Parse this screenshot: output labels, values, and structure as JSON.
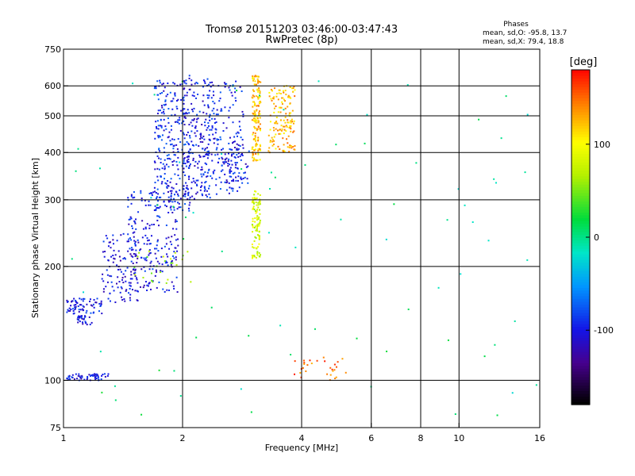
{
  "chart_data": {
    "type": "scatter",
    "title": "Tromsø 20151203 03:46:00-03:47:43",
    "subtitle": "RwPretec (8p)",
    "xlabel": "Frequency [MHz]",
    "ylabel": "Stationary phase Virtual Height [km]",
    "x_scale": "log",
    "y_scale": "log",
    "xlim": [
      1,
      16
    ],
    "ylim": [
      75,
      750
    ],
    "x_ticks": [
      1,
      2,
      4,
      6,
      8,
      10,
      16
    ],
    "x_tick_labels": [
      "1",
      "2",
      "4",
      "6",
      "8",
      "10",
      "16"
    ],
    "x_gridlines": [
      2,
      4,
      6,
      8,
      10
    ],
    "y_ticks": [
      75,
      100,
      200,
      300,
      400,
      500,
      600,
      750
    ],
    "y_tick_labels": [
      "75",
      "100",
      "200",
      "300",
      "400",
      "500",
      "600",
      "750"
    ],
    "y_gridlines": [
      100,
      200,
      300,
      400,
      500,
      600
    ],
    "grid": true,
    "stats": {
      "heading": "Phases",
      "o_line": "mean, sd,O: -95.8, 13.7",
      "x_line": "mean, sd,X:  79.4, 18.8"
    },
    "colorbar": {
      "label": "[deg]",
      "range": [
        -180,
        180
      ],
      "ticks": [
        -100,
        0,
        100
      ],
      "tick_labels": [
        "-100",
        "0",
        "100"
      ]
    },
    "clusters": [
      {
        "phase": -100,
        "n": 60,
        "x": [
          1.02,
          1.3
        ],
        "y": [
          100,
          104
        ]
      },
      {
        "phase": -100,
        "n": 70,
        "x": [
          1.02,
          1.25
        ],
        "y": [
          150,
          165
        ]
      },
      {
        "phase": -100,
        "n": 30,
        "x": [
          1.08,
          1.18
        ],
        "y": [
          140,
          148
        ]
      },
      {
        "phase": -105,
        "n": 120,
        "x": [
          1.25,
          1.55
        ],
        "y": [
          160,
          250
        ]
      },
      {
        "phase": -100,
        "n": 200,
        "x": [
          1.45,
          1.95
        ],
        "y": [
          170,
          320
        ]
      },
      {
        "phase": -95,
        "n": 260,
        "x": [
          1.7,
          2.1
        ],
        "y": [
          280,
          620
        ]
      },
      {
        "phase": -100,
        "n": 200,
        "x": [
          2.0,
          2.35
        ],
        "y": [
          300,
          640
        ]
      },
      {
        "phase": -95,
        "n": 160,
        "x": [
          2.3,
          2.85
        ],
        "y": [
          310,
          620
        ]
      },
      {
        "phase": -100,
        "n": 70,
        "x": [
          2.5,
          2.95
        ],
        "y": [
          330,
          420
        ]
      },
      {
        "phase": 120,
        "n": 150,
        "x": [
          3.0,
          3.15
        ],
        "y": [
          380,
          640
        ]
      },
      {
        "phase": 80,
        "n": 100,
        "x": [
          3.0,
          3.15
        ],
        "y": [
          210,
          320
        ]
      },
      {
        "phase": 125,
        "n": 150,
        "x": [
          3.3,
          3.85
        ],
        "y": [
          400,
          600
        ]
      },
      {
        "phase": 60,
        "n": 25,
        "x": [
          1.5,
          2.1
        ],
        "y": [
          180,
          220
        ]
      },
      {
        "phase": 150,
        "n": 30,
        "x": [
          3.8,
          5.2
        ],
        "y": [
          100,
          115
        ]
      },
      {
        "phase": 0,
        "n": 80,
        "x": [
          1.0,
          16.0
        ],
        "y": [
          78,
          620
        ]
      }
    ]
  }
}
